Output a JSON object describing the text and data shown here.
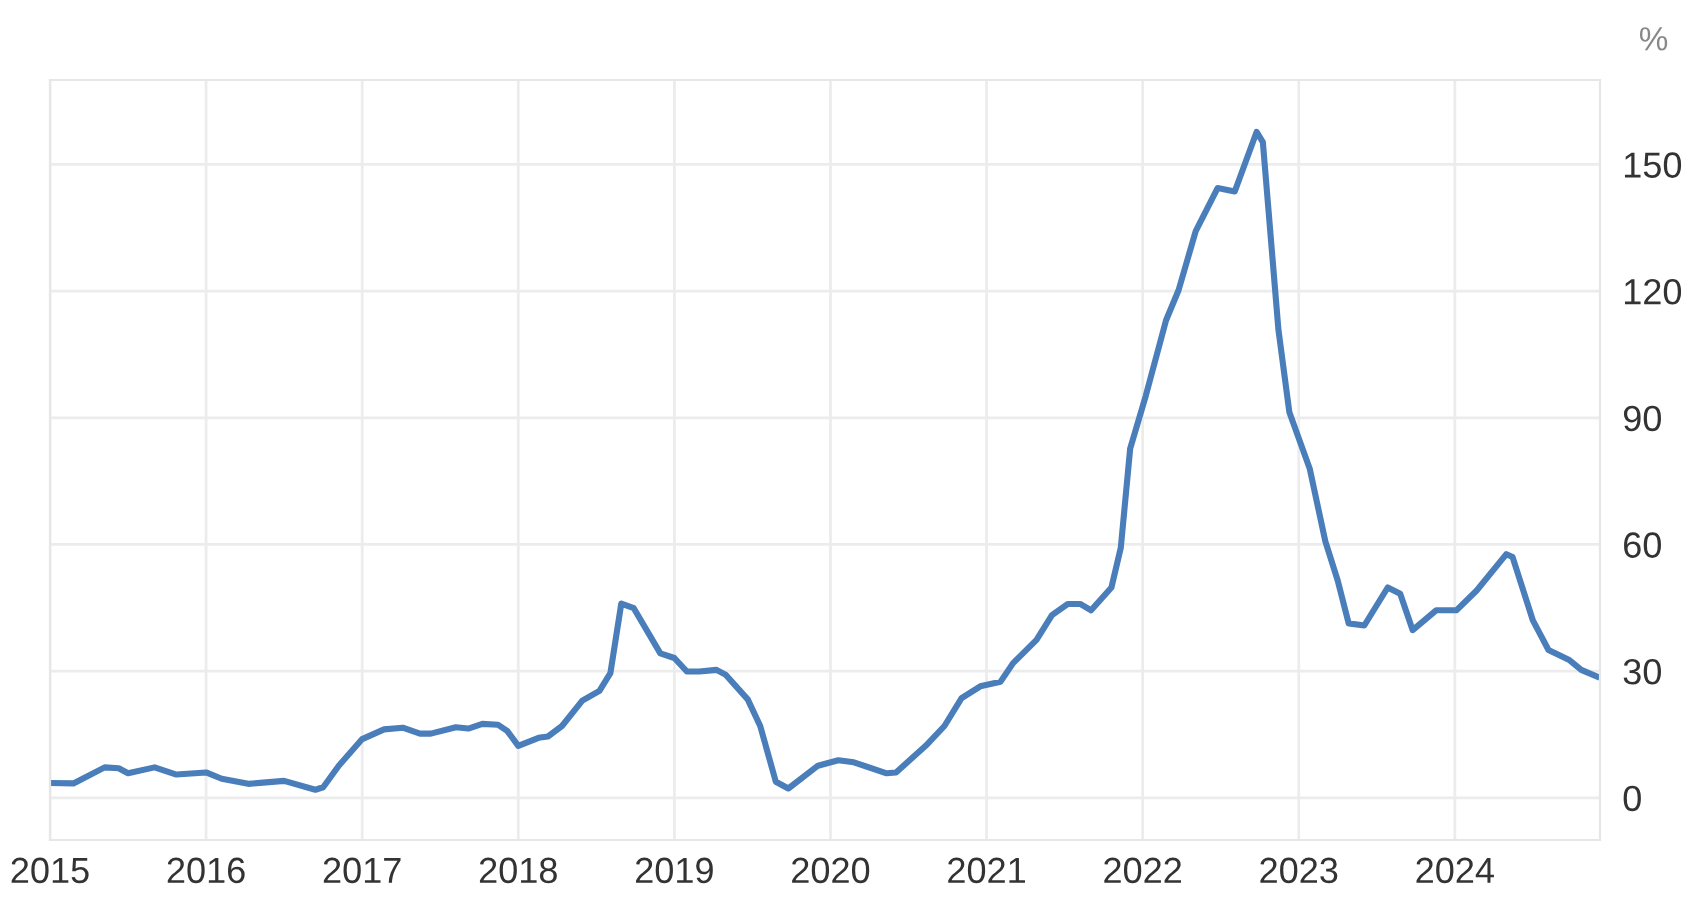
{
  "chart_data": {
    "type": "line",
    "ylabel": "%",
    "x": [
      2015.0,
      2015.15,
      2015.35,
      2015.44,
      2015.5,
      2015.67,
      2015.81,
      2016.0,
      2016.1,
      2016.27,
      2016.5,
      2016.7,
      2016.75,
      2016.85,
      2017.0,
      2017.14,
      2017.26,
      2017.37,
      2017.44,
      2017.6,
      2017.68,
      2017.77,
      2017.87,
      2017.93,
      2018.0,
      2018.13,
      2018.19,
      2018.28,
      2018.41,
      2018.52,
      2018.59,
      2018.66,
      2018.74,
      2018.91,
      2019.0,
      2019.08,
      2019.16,
      2019.27,
      2019.33,
      2019.47,
      2019.55,
      2019.65,
      2019.73,
      2019.92,
      2020.05,
      2020.15,
      2020.36,
      2020.42,
      2020.61,
      2020.73,
      2020.84,
      2020.96,
      2021.09,
      2021.17,
      2021.32,
      2021.42,
      2021.52,
      2021.6,
      2021.67,
      2021.8,
      2021.86,
      2021.92,
      2022.02,
      2022.15,
      2022.23,
      2022.34,
      2022.48,
      2022.59,
      2022.73,
      2022.77,
      2022.87,
      2022.94,
      2023.07,
      2023.17,
      2023.25,
      2023.32,
      2023.42,
      2023.57,
      2023.65,
      2023.73,
      2023.88,
      2024.01,
      2024.14,
      2024.33,
      2024.37,
      2024.5,
      2024.6,
      2024.73,
      2024.81,
      2024.91
    ],
    "series": [
      {
        "color": "#4a7ebb",
        "values": [
          3.5,
          3.4,
          7.2,
          7,
          5.8,
          7.2,
          5.5,
          6,
          4.5,
          3.3,
          4,
          1.9,
          2.5,
          7.6,
          13.9,
          16.2,
          16.6,
          15.2,
          15.2,
          16.7,
          16.4,
          17.5,
          17.3,
          15.8,
          12.3,
          14.2,
          14.5,
          17,
          23,
          25.3,
          29.5,
          46,
          44.9,
          34.2,
          33.1,
          29.9,
          29.9,
          30.3,
          29.1,
          23.3,
          17,
          3.8,
          2.2,
          7.6,
          8.9,
          8.4,
          5.8,
          6,
          12.3,
          17,
          23.6,
          26.4,
          27.5,
          31.9,
          37.4,
          43.3,
          45.9,
          45.9,
          44.4,
          49.8,
          59.2,
          82.7,
          95.2,
          113.1,
          120.2,
          134.2,
          144.4,
          143.6,
          157.7,
          155.3,
          110.8,
          91.3,
          78,
          60.8,
          51.4,
          41.3,
          40.8,
          49.8,
          48.3,
          39.7,
          44.4,
          44.4,
          49.1,
          57.7,
          57,
          42,
          35,
          32.7,
          30.3,
          28.7
        ]
      }
    ],
    "xlim": [
      2015,
      2024.93
    ],
    "xticks": [
      2015,
      2016,
      2017,
      2018,
      2019,
      2020,
      2021,
      2022,
      2023,
      2024
    ],
    "ylim": [
      -10,
      170
    ],
    "yticks": [
      0,
      30,
      60,
      90,
      120,
      150
    ],
    "grid": true,
    "legend": false,
    "marker": "none",
    "line_style": "solid"
  }
}
